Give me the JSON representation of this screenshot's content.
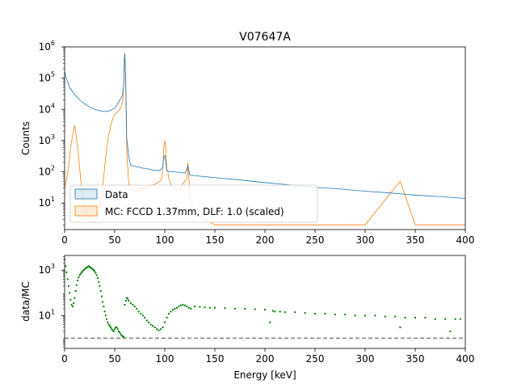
{
  "chart_data": [
    {
      "type": "line",
      "title": "V07647A",
      "xlabel": "",
      "ylabel": "Counts",
      "xlim": [
        0,
        400
      ],
      "ylim_log10": [
        0.15,
        6
      ],
      "y_scale": "log",
      "x_ticks": [
        "0",
        "50",
        "100",
        "150",
        "200",
        "250",
        "300",
        "350",
        "400"
      ],
      "y_tick_exponents": [
        1,
        2,
        3,
        4,
        5,
        6
      ],
      "legend": {
        "location": "lower-left",
        "entries": [
          "Data",
          "MC: FCCD 1.37mm, DLF: 1.0 (scaled)"
        ]
      },
      "series": [
        {
          "name": "Data",
          "color": "#1f77b4",
          "x": [
            0,
            2,
            5,
            10,
            15,
            20,
            25,
            30,
            35,
            40,
            45,
            50,
            53,
            55,
            57,
            58,
            59,
            59.5,
            60,
            60.5,
            61,
            62,
            64,
            66,
            70,
            75,
            78,
            80,
            85,
            90,
            95,
            98,
            99,
            100,
            101,
            102,
            105,
            110,
            115,
            120,
            122,
            123,
            125,
            130,
            140,
            150,
            175,
            200,
            225,
            250,
            275,
            300,
            325,
            350,
            375,
            400
          ],
          "y": [
            160000,
            90000,
            50000,
            30000,
            20000,
            15000,
            12000,
            10000,
            9000,
            8500,
            9000,
            11000,
            15000,
            20000,
            25000,
            32000,
            60000,
            300000,
            620000,
            300000,
            80000,
            1200,
            300,
            160,
            150,
            140,
            130,
            130,
            120,
            110,
            110,
            140,
            300,
            330,
            200,
            110,
            100,
            100,
            95,
            90,
            120,
            160,
            80,
            75,
            70,
            65,
            55,
            45,
            38,
            32,
            28,
            24,
            21,
            18,
            16,
            14
          ]
        },
        {
          "name": "MC: FCCD 1.37mm, DLF: 1.0 (scaled)",
          "color": "#ff7f0e",
          "x": [
            0,
            2,
            4,
            6,
            8,
            10,
            12,
            14,
            16,
            18,
            20,
            22,
            24,
            26,
            28,
            30,
            32,
            34,
            36,
            38,
            40,
            42,
            44,
            46,
            48,
            50,
            52,
            54,
            56,
            58,
            59,
            59.5,
            60,
            60.5,
            61,
            62,
            64,
            70,
            80,
            90,
            95,
            97,
            98,
            99,
            100,
            101,
            102,
            103,
            104,
            106,
            110,
            115,
            120,
            122,
            123,
            124,
            126,
            130,
            140,
            150,
            175,
            200,
            250,
            300,
            335,
            350,
            400
          ],
          "y": [
            30,
            60,
            150,
            600,
            1500,
            3000,
            1200,
            300,
            60,
            15,
            8,
            5,
            4,
            3,
            2.5,
            2.5,
            3,
            5,
            10,
            30,
            150,
            600,
            1500,
            3000,
            5000,
            7000,
            8000,
            9000,
            11000,
            20000,
            60000,
            300000,
            600000,
            300000,
            40000,
            500,
            40,
            25,
            30,
            40,
            50,
            60,
            120,
            600,
            1000,
            600,
            120,
            100,
            60,
            40,
            25,
            30,
            50,
            60,
            200,
            60,
            10,
            5,
            3,
            2,
            2,
            2,
            2,
            2,
            50,
            2,
            2
          ]
        }
      ]
    },
    {
      "type": "scatter",
      "title": "",
      "xlabel": "Energy [keV]",
      "ylabel": "data/MC",
      "xlim": [
        0,
        400
      ],
      "ylim_log10": [
        -0.45,
        3.65
      ],
      "y_scale": "log",
      "x_ticks": [
        "0",
        "50",
        "100",
        "150",
        "200",
        "250",
        "300",
        "350",
        "400"
      ],
      "y_tick_exponents": [
        1,
        3
      ],
      "reference_line": {
        "y": 1,
        "style": "dashed",
        "color": "#7f7f7f"
      },
      "series": [
        {
          "name": "data/MC",
          "color": "#008000",
          "x": [
            0,
            1,
            2,
            3,
            4,
            5,
            6,
            7,
            8,
            9,
            10,
            11,
            12,
            13,
            14,
            15,
            16,
            17,
            18,
            19,
            20,
            21,
            22,
            23,
            24,
            25,
            26,
            27,
            28,
            29,
            30,
            31,
            32,
            33,
            34,
            35,
            36,
            37,
            38,
            39,
            40,
            41,
            42,
            43,
            44,
            45,
            46,
            47,
            48,
            49,
            50,
            51,
            52,
            53,
            54,
            55,
            56,
            57,
            58,
            59,
            60,
            61,
            62,
            63,
            64,
            66,
            68,
            70,
            72,
            74,
            76,
            78,
            80,
            82,
            84,
            86,
            88,
            90,
            92,
            94,
            96,
            98,
            100,
            102,
            104,
            106,
            108,
            110,
            112,
            114,
            116,
            118,
            120,
            122,
            124,
            126,
            130,
            135,
            140,
            145,
            150,
            160,
            170,
            180,
            190,
            200,
            205,
            208,
            210,
            215,
            220,
            230,
            240,
            250,
            260,
            270,
            280,
            290,
            300,
            310,
            320,
            330,
            335,
            340,
            350,
            360,
            370,
            380,
            385,
            390,
            395
          ],
          "y": [
            3000,
            1500,
            800,
            400,
            200,
            100,
            50,
            30,
            25,
            35,
            60,
            120,
            220,
            350,
            480,
            600,
            700,
            800,
            900,
            1000,
            1100,
            1200,
            1300,
            1400,
            1500,
            1400,
            1300,
            1200,
            1100,
            1000,
            900,
            750,
            600,
            450,
            300,
            200,
            120,
            70,
            40,
            25,
            15,
            10,
            7,
            5,
            4,
            3.5,
            3,
            2.5,
            2.2,
            2,
            2.5,
            3,
            3,
            2.5,
            2,
            1.8,
            1.5,
            1.3,
            1.2,
            1.1,
            30,
            45,
            60,
            55,
            45,
            35,
            30,
            25,
            20,
            15,
            12,
            10,
            8,
            6,
            5,
            4,
            3.5,
            3,
            2.5,
            2.2,
            2.5,
            3,
            5,
            8,
            12,
            15,
            18,
            20,
            22,
            25,
            28,
            30,
            28,
            25,
            22,
            20,
            25,
            24,
            23,
            22,
            22,
            21,
            20,
            20,
            19,
            18,
            5,
            16,
            15,
            15,
            14,
            14,
            13,
            12,
            12,
            11,
            11,
            10,
            10,
            10,
            9,
            9,
            3,
            8,
            8,
            8,
            7,
            7,
            2,
            7,
            7
          ]
        }
      ]
    }
  ]
}
